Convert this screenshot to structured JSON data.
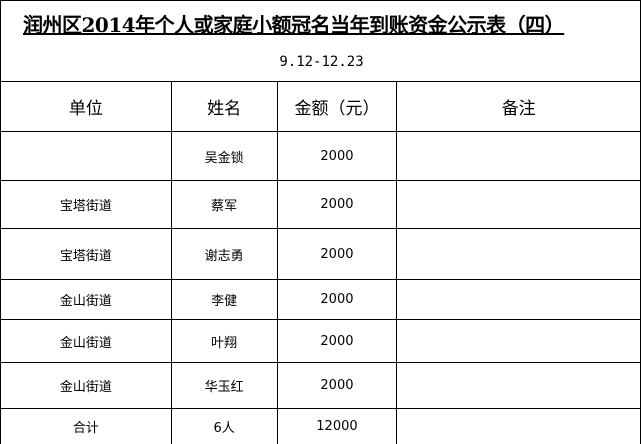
{
  "title": "润州区2014年个人或家庭小额冠名当年到账资金公示表（四）",
  "subtitle": "9.12-12.23",
  "columns": [
    "单位",
    "姓名",
    "金额（元）",
    "备注"
  ],
  "rows": [
    {
      "unit": "",
      "name": "吴金锁",
      "amount": "2000",
      "note": ""
    },
    {
      "unit": "宝塔街道",
      "name": "蔡军",
      "amount": "2000",
      "note": ""
    },
    {
      "unit": "宝塔街道",
      "name": "谢志勇",
      "amount": "2000",
      "note": ""
    },
    {
      "unit": "金山街道",
      "name": "李健",
      "amount": "2000",
      "note": ""
    },
    {
      "unit": "金山街道",
      "name": "叶翔",
      "amount": "2000",
      "note": ""
    },
    {
      "unit": "金山街道",
      "name": "华玉红",
      "amount": "2000",
      "note": ""
    }
  ],
  "total": {
    "label": "合计",
    "count": "6人",
    "amount": "12000",
    "note": ""
  }
}
